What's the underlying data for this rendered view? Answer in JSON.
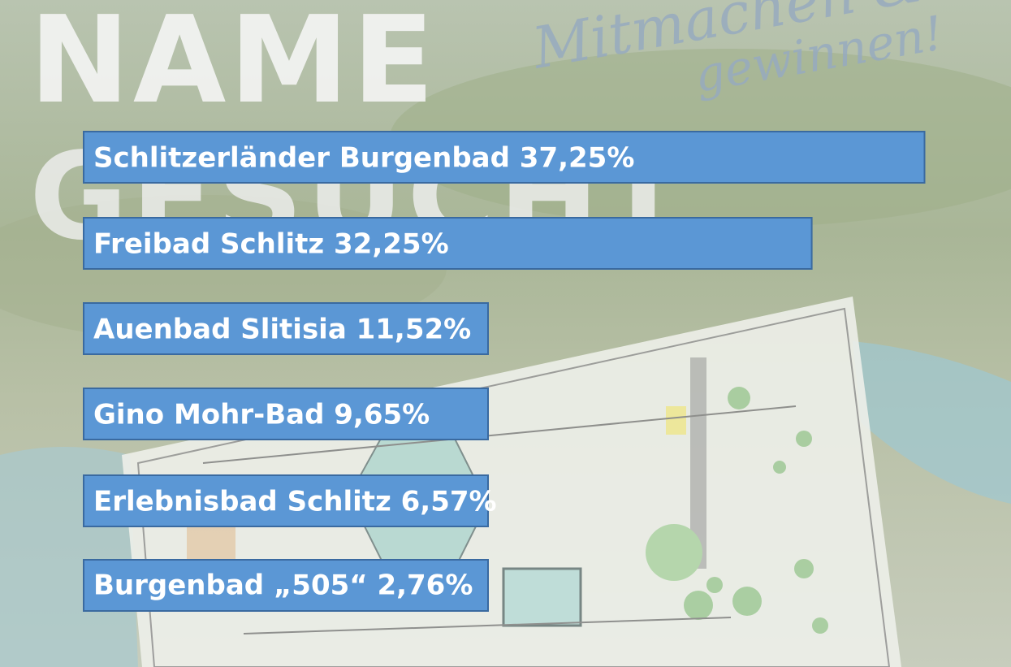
{
  "background": {
    "headline_top": "NAME",
    "headline_bottom": "GESUCHT",
    "script_line1": "Mitmachen &",
    "script_line2": "gewinnen!"
  },
  "colors": {
    "bar_fill": "#5b97d5",
    "bar_border": "#3a6aa0",
    "label_text": "#ffffff",
    "headline_text": "#f6f6f6"
  },
  "chart_data": {
    "type": "bar",
    "orientation": "horizontal",
    "categories": [
      "Schlitzerländer Burgenbad",
      "Freibad Schlitz",
      "Auenbad Slitisia",
      "Gino Mohr-Bad",
      "Erlebnisbad Schlitz",
      "Burgenbad „505“"
    ],
    "values": [
      37.25,
      32.25,
      11.52,
      9.65,
      6.57,
      2.76
    ],
    "value_labels": [
      "37,25%",
      "32,25%",
      "11,52%",
      "9,65%",
      "6,57%",
      "2,76%"
    ],
    "unit": "%",
    "grid": false,
    "legend": "none"
  }
}
